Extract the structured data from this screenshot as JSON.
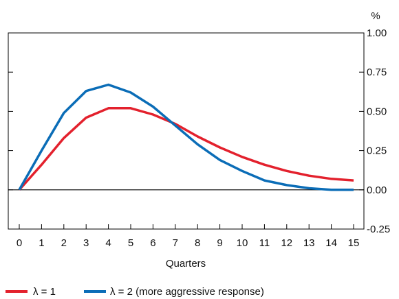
{
  "chart_data": {
    "type": "line",
    "xlabel": "Quarters",
    "ylabel": "%",
    "x": [
      0,
      1,
      2,
      3,
      4,
      5,
      6,
      7,
      8,
      9,
      10,
      11,
      12,
      13,
      14,
      15
    ],
    "xticks": [
      "0",
      "1",
      "2",
      "3",
      "4",
      "5",
      "6",
      "7",
      "8",
      "9",
      "10",
      "11",
      "12",
      "13",
      "14",
      "15"
    ],
    "ylim": [
      -0.25,
      1.0
    ],
    "yticks": [
      "1.00",
      "0.75",
      "0.50",
      "0.25",
      "0.00",
      "-0.25"
    ],
    "ytick_values": [
      1.0,
      0.75,
      0.5,
      0.25,
      0.0,
      -0.25
    ],
    "series": [
      {
        "name": "λ = 1",
        "color": "#e3212d",
        "values": [
          0.0,
          0.16,
          0.33,
          0.46,
          0.52,
          0.52,
          0.48,
          0.42,
          0.34,
          0.27,
          0.21,
          0.16,
          0.12,
          0.09,
          0.07,
          0.06
        ]
      },
      {
        "name": "λ = 2 (more aggressive response)",
        "color": "#0b6db7",
        "values": [
          0.0,
          0.25,
          0.49,
          0.63,
          0.67,
          0.62,
          0.53,
          0.41,
          0.29,
          0.19,
          0.12,
          0.06,
          0.03,
          0.01,
          0.0,
          0.0
        ]
      }
    ],
    "zero_line": true,
    "grid": false,
    "legend_position": "bottom-left"
  }
}
